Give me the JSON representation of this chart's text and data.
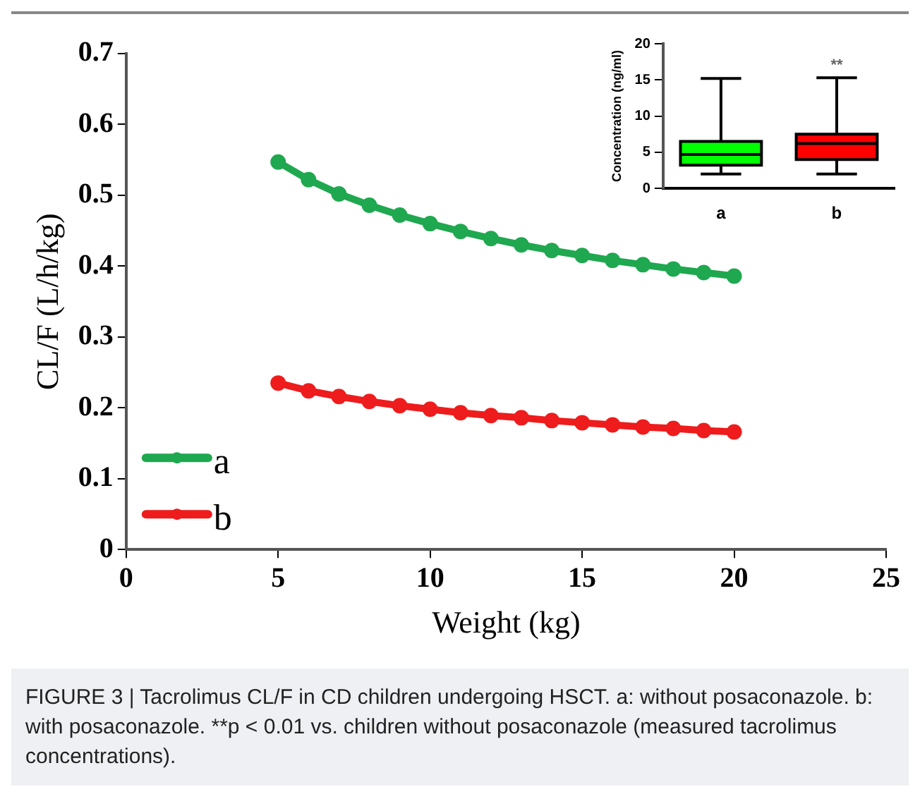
{
  "chart_data": [
    {
      "type": "line",
      "xlabel": "Weight (kg)",
      "ylabel": "CL/F (L/h/kg)",
      "x": [
        5,
        6,
        7,
        8,
        9,
        10,
        11,
        12,
        13,
        14,
        15,
        16,
        17,
        18,
        19,
        20
      ],
      "series": [
        {
          "name": "a",
          "color": "#1fa84f",
          "values": [
            0.547,
            0.522,
            0.502,
            0.486,
            0.472,
            0.46,
            0.449,
            0.439,
            0.43,
            0.422,
            0.415,
            0.408,
            0.402,
            0.396,
            0.391,
            0.386
          ]
        },
        {
          "name": "b",
          "color": "#ee1c1c",
          "values": [
            0.235,
            0.224,
            0.216,
            0.209,
            0.203,
            0.198,
            0.193,
            0.189,
            0.186,
            0.182,
            0.179,
            0.176,
            0.173,
            0.171,
            0.168,
            0.166
          ]
        }
      ],
      "xlim": [
        0,
        25
      ],
      "xticks": [
        0,
        5,
        10,
        15,
        20,
        25
      ],
      "ylim": [
        0,
        0.7
      ],
      "yticks": [
        0,
        0.1,
        0.2,
        0.3,
        0.4,
        0.5,
        0.6,
        0.7
      ],
      "marker": "circle",
      "legend": "bottom left",
      "grid": false,
      "annotations": [
        "FIGURE 3 | Tacrolimus CL/F in CD children undergoing HSCT. a: without posaconazole. b: with posaconazole. **p < 0.01 vs. children without posaconazole (measured tacrolimus concentrations)."
      ]
    },
    {
      "type": "box",
      "ylabel": "Concentration (ng/ml)",
      "categories": [
        "a",
        "b"
      ],
      "colors": [
        "#00ff00",
        "#ff0000"
      ],
      "boxes": [
        {
          "low": 2,
          "q1": 3.2,
          "median": 4.7,
          "q3": 6.5,
          "high": 15.2
        },
        {
          "low": 2,
          "q1": 4,
          "median": 6.2,
          "q3": 7.5,
          "high": 15.3
        }
      ],
      "ylim": [
        0,
        20
      ],
      "yticks": [
        0,
        5,
        10,
        15,
        20
      ],
      "grid": false,
      "annotations": [
        "**"
      ]
    }
  ]
}
